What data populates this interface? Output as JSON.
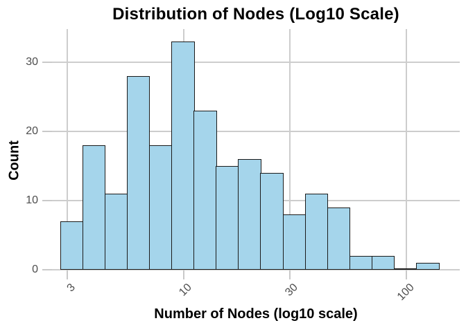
{
  "chart_data": {
    "type": "histogram",
    "title": "Distribution of Nodes (Log10 Scale)",
    "xlabel": "Number of Nodes (log10 scale)",
    "ylabel": "Count",
    "x_scale": "log10",
    "x_tick_labels": [
      "3",
      "10",
      "30",
      "100"
    ],
    "x_tick_values": [
      3,
      10,
      30,
      100
    ],
    "y_tick_labels": [
      "0",
      "10",
      "20",
      "30"
    ],
    "y_tick_values": [
      0,
      10,
      20,
      30
    ],
    "ylim": [
      0,
      34.8
    ],
    "grid": true,
    "legend": null,
    "bin_log10_start": 0.444,
    "bin_log10_width": 0.1,
    "bin_edges_approx": [
      2.8,
      3.5,
      4.4,
      5.5,
      7.0,
      8.8,
      11.1,
      13.9,
      17.5,
      22.1,
      27.8,
      35.0,
      44.1,
      55.5,
      69.8,
      87.9,
      110.7,
      139.3
    ],
    "counts": [
      7,
      18,
      11,
      28,
      18,
      33,
      23,
      15,
      16,
      14,
      8,
      11,
      9,
      2,
      2,
      0,
      1
    ],
    "colors": {
      "bar_fill": "#A5D5EB",
      "bar_border": "#1A1A1A",
      "gridline": "#CDCDCD",
      "tick_mark": "#C9C9C9",
      "tick_label": "#4D4D4D",
      "text": "#000000",
      "background": "#FFFFFF"
    }
  }
}
